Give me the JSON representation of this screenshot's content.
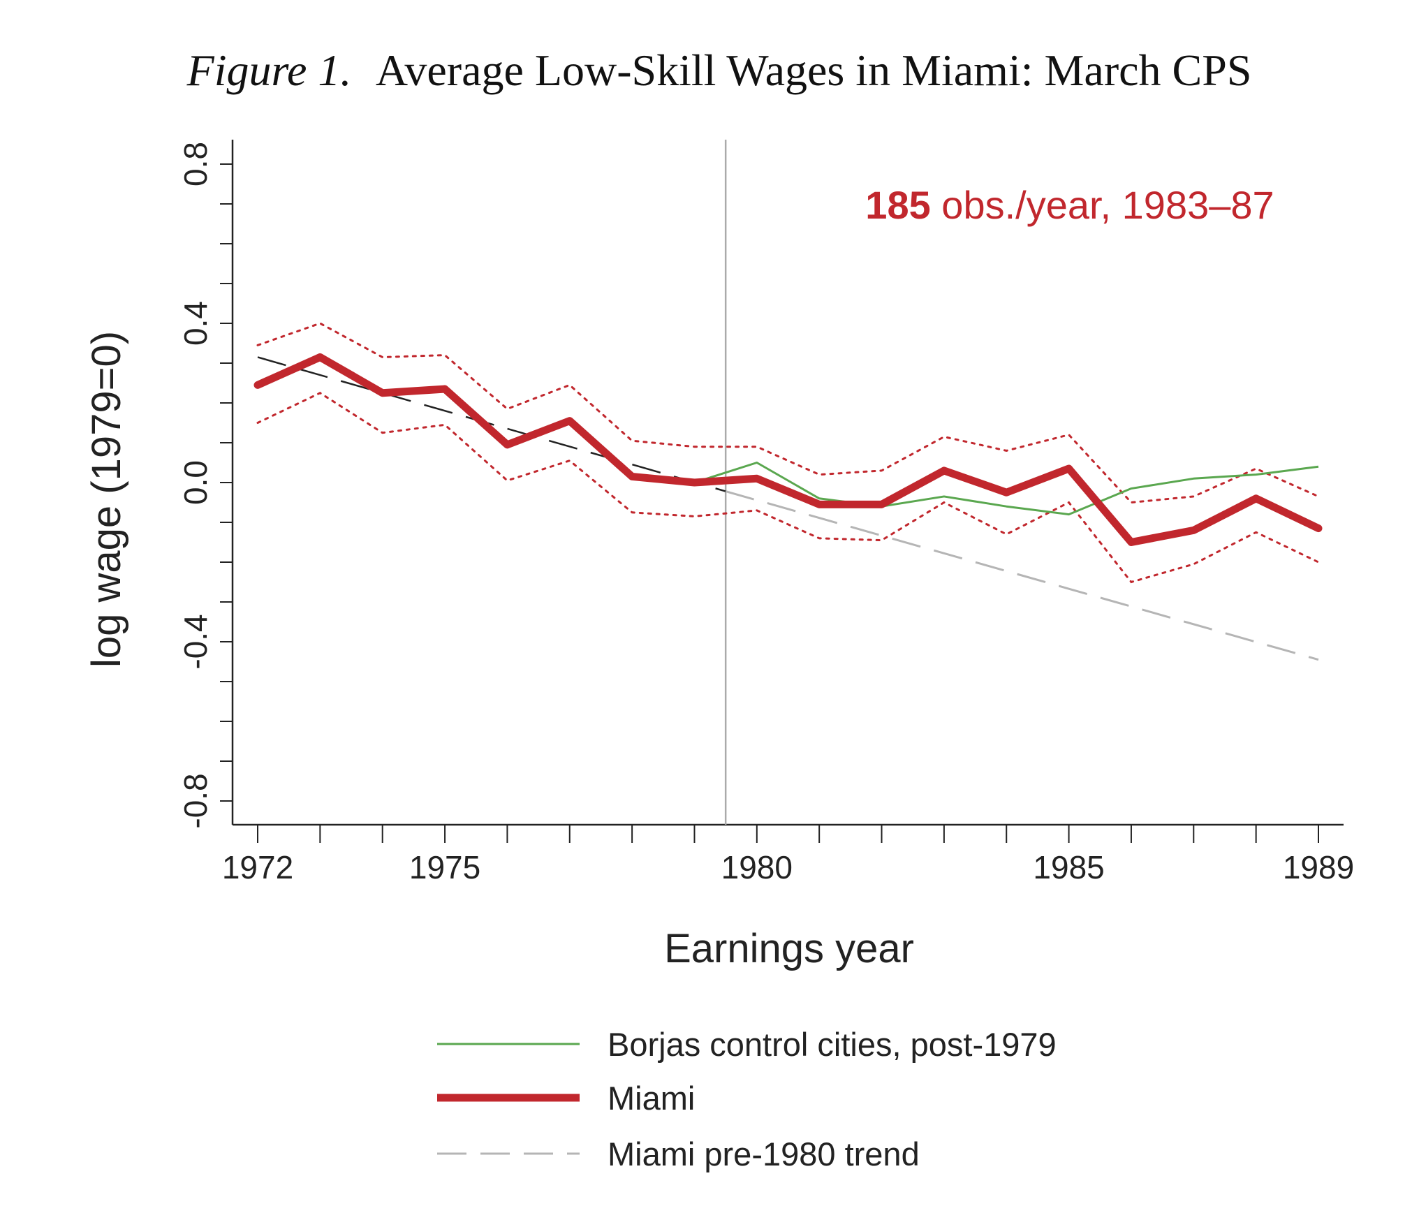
{
  "figure": {
    "label": "Figure 1.",
    "title": "Average Low-Skill Wages in Miami: March CPS"
  },
  "chart_data": {
    "type": "line",
    "title": "Average Low-Skill Wages in Miami: March CPS",
    "xlabel": "Earnings year",
    "ylabel": "log wage (1979=0)",
    "xlim": [
      1972,
      1989
    ],
    "ylim": [
      -0.8,
      0.8
    ],
    "x_ticks_labeled": [
      1972,
      1975,
      1980,
      1985,
      1989
    ],
    "x_ticks_all": [
      1972,
      1973,
      1974,
      1975,
      1976,
      1977,
      1978,
      1979,
      1980,
      1981,
      1982,
      1983,
      1984,
      1985,
      1986,
      1987,
      1988,
      1989
    ],
    "y_ticks_labeled": [
      "-0.8",
      "-0.4",
      "0.0",
      "0.4",
      "0.8"
    ],
    "y_tick_values": [
      -0.8,
      -0.4,
      0.0,
      0.4,
      0.8
    ],
    "y_minor_step": 0.1,
    "vertical_line_x": 1979.5,
    "annotation": {
      "bold": "185",
      "rest": " obs./year, 1983–87",
      "color": "#c1272d"
    },
    "series": [
      {
        "name": "Miami",
        "color": "#c1272d",
        "style": "thick",
        "x": [
          1972,
          1973,
          1974,
          1975,
          1976,
          1977,
          1978,
          1979,
          1980,
          1981,
          1982,
          1983,
          1984,
          1985,
          1986,
          1987,
          1988,
          1989
        ],
        "y": [
          0.245,
          0.315,
          0.225,
          0.235,
          0.095,
          0.155,
          0.015,
          0.0,
          0.01,
          -0.055,
          -0.055,
          0.03,
          -0.025,
          0.035,
          -0.15,
          -0.12,
          -0.04,
          -0.115
        ]
      },
      {
        "name": "Borjas control cities, post-1979",
        "color": "#5aa74f",
        "style": "thin",
        "x": [
          1979,
          1980,
          1981,
          1982,
          1983,
          1984,
          1985,
          1986,
          1987,
          1988,
          1989
        ],
        "y": [
          0.0,
          0.05,
          -0.04,
          -0.06,
          -0.035,
          -0.06,
          -0.08,
          -0.015,
          0.01,
          0.02,
          0.04
        ]
      },
      {
        "name": "Miami pre-1980 trend",
        "color": "#b5b5b5",
        "style": "dashed",
        "x": [
          1979.5,
          1989
        ],
        "y": [
          -0.022,
          -0.445
        ]
      }
    ],
    "trend_fit_pre": {
      "color": "#222222",
      "style": "dashed",
      "x": [
        1972,
        1979.5
      ],
      "y": [
        0.315,
        -0.022
      ]
    },
    "ci_upper": {
      "color": "#c1272d",
      "style": "dotted",
      "x": [
        1972,
        1973,
        1974,
        1975,
        1976,
        1977,
        1978,
        1979,
        1980,
        1981,
        1982,
        1983,
        1984,
        1985,
        1986,
        1987,
        1988,
        1989
      ],
      "y": [
        0.345,
        0.4,
        0.315,
        0.32,
        0.185,
        0.245,
        0.105,
        0.09,
        0.09,
        0.02,
        0.03,
        0.115,
        0.08,
        0.12,
        -0.05,
        -0.035,
        0.035,
        -0.035
      ]
    },
    "ci_lower": {
      "color": "#c1272d",
      "style": "dotted",
      "x": [
        1972,
        1973,
        1974,
        1975,
        1976,
        1977,
        1978,
        1979,
        1980,
        1981,
        1982,
        1983,
        1984,
        1985,
        1986,
        1987,
        1988,
        1989
      ],
      "y": [
        0.15,
        0.225,
        0.125,
        0.145,
        0.005,
        0.055,
        -0.075,
        -0.085,
        -0.07,
        -0.14,
        -0.145,
        -0.05,
        -0.13,
        -0.05,
        -0.25,
        -0.205,
        -0.125,
        -0.2
      ]
    },
    "legend": {
      "placement": "bottom",
      "entries": [
        {
          "label": "Borjas control cities, post-1979",
          "color": "#5aa74f",
          "style": "thin"
        },
        {
          "label": "Miami",
          "color": "#c1272d",
          "style": "thick"
        },
        {
          "label": "Miami pre-1980 trend",
          "color": "#b5b5b5",
          "style": "dashed"
        }
      ]
    }
  }
}
